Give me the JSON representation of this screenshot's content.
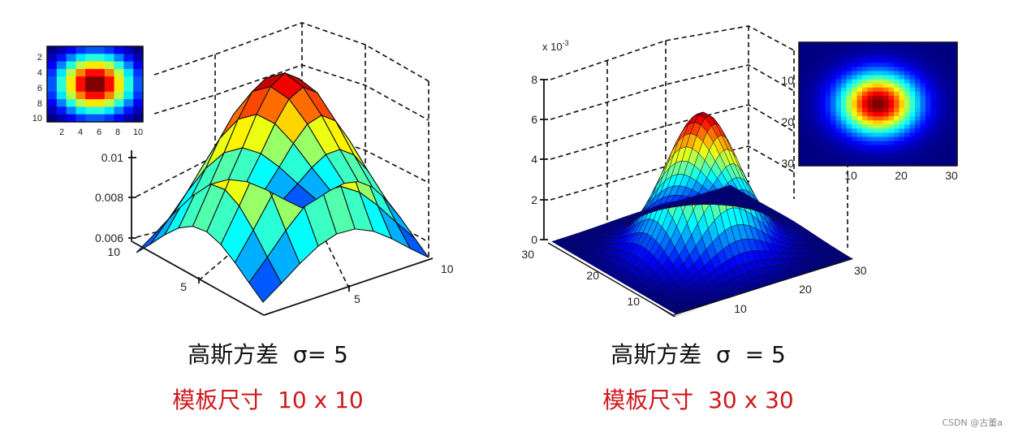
{
  "chart_data": [
    {
      "type": "surface",
      "title": "",
      "description": "3D surface plot of a Gaussian kernel, size 10x10, sigma = 5",
      "z_axis": {
        "ticks": [
          "0.006",
          "0.008",
          "0.01"
        ],
        "range": [
          0.006,
          0.0125
        ]
      },
      "x_axis": {
        "ticks": [
          "5",
          "10"
        ],
        "range": [
          0,
          10
        ]
      },
      "y_axis": {
        "ticks": [
          "5",
          "10"
        ],
        "range": [
          0,
          10
        ]
      },
      "grid": true,
      "colormap": "jet",
      "grid_size": [
        10,
        10
      ],
      "sigma": 5,
      "inset": {
        "type": "heatmap",
        "x_ticks": [
          "2",
          "4",
          "6",
          "8",
          "10"
        ],
        "y_ticks": [
          "2",
          "4",
          "6",
          "8",
          "10"
        ],
        "size": [
          10,
          10
        ]
      },
      "caption": {
        "line1": "高斯方差  σ= 5",
        "line2": "模板尺寸  10 x 10"
      }
    },
    {
      "type": "surface",
      "title": "",
      "description": "3D surface plot of a Gaussian kernel, size 30x30, sigma = 5",
      "z_axis": {
        "ticks": [
          "0",
          "2",
          "4",
          "6",
          "8"
        ],
        "multiplier": "x 10^-3",
        "range": [
          0,
          8
        ]
      },
      "x_axis": {
        "ticks": [
          "10",
          "20",
          "30"
        ],
        "range": [
          0,
          30
        ]
      },
      "y_axis": {
        "ticks": [
          "10",
          "20",
          "30"
        ],
        "range": [
          0,
          30
        ]
      },
      "grid": true,
      "colormap": "jet",
      "grid_size": [
        30,
        30
      ],
      "sigma": 5,
      "peak_value": 0.0064,
      "inset": {
        "type": "heatmap",
        "x_ticks": [
          "10",
          "20",
          "30"
        ],
        "y_ticks": [
          "10",
          "20",
          "30"
        ],
        "size": [
          30,
          30
        ]
      },
      "caption": {
        "line1": "高斯方差  σ  = 5",
        "line2": "模板尺寸  30 x 30"
      }
    }
  ],
  "left": {
    "z_ticks": [
      "0.01",
      "0.008",
      "0.006"
    ],
    "y_tick_10": "10",
    "y_tick_5": "5",
    "x_tick_5": "5",
    "x_tick_10": "10",
    "inset_y_ticks": [
      "2",
      "4",
      "6",
      "8",
      "10"
    ],
    "inset_x_ticks": [
      "2",
      "4",
      "6",
      "8",
      "10"
    ],
    "caption_line1": "高斯方差  σ= 5",
    "caption_line2": "模板尺寸  10 x 10"
  },
  "right": {
    "multiplier_base": "x 10",
    "multiplier_exp": "-3",
    "z_ticks": [
      "8",
      "6",
      "4",
      "2",
      "0"
    ],
    "y_ticks": [
      "30",
      "20",
      "10"
    ],
    "x_ticks": [
      "10",
      "20",
      "30"
    ],
    "inset_y_ticks": [
      "10",
      "20",
      "30"
    ],
    "inset_x_ticks": [
      "10",
      "20",
      "30"
    ],
    "caption_line1": "高斯方差  σ  = 5",
    "caption_line2": "模板尺寸  30 x 30"
  },
  "watermark": "CSDN @古董a",
  "colors": {
    "caption_red": "#d0191c",
    "caption_black": "#111111",
    "jet_low": "#00008f",
    "jet_high": "#800000"
  }
}
